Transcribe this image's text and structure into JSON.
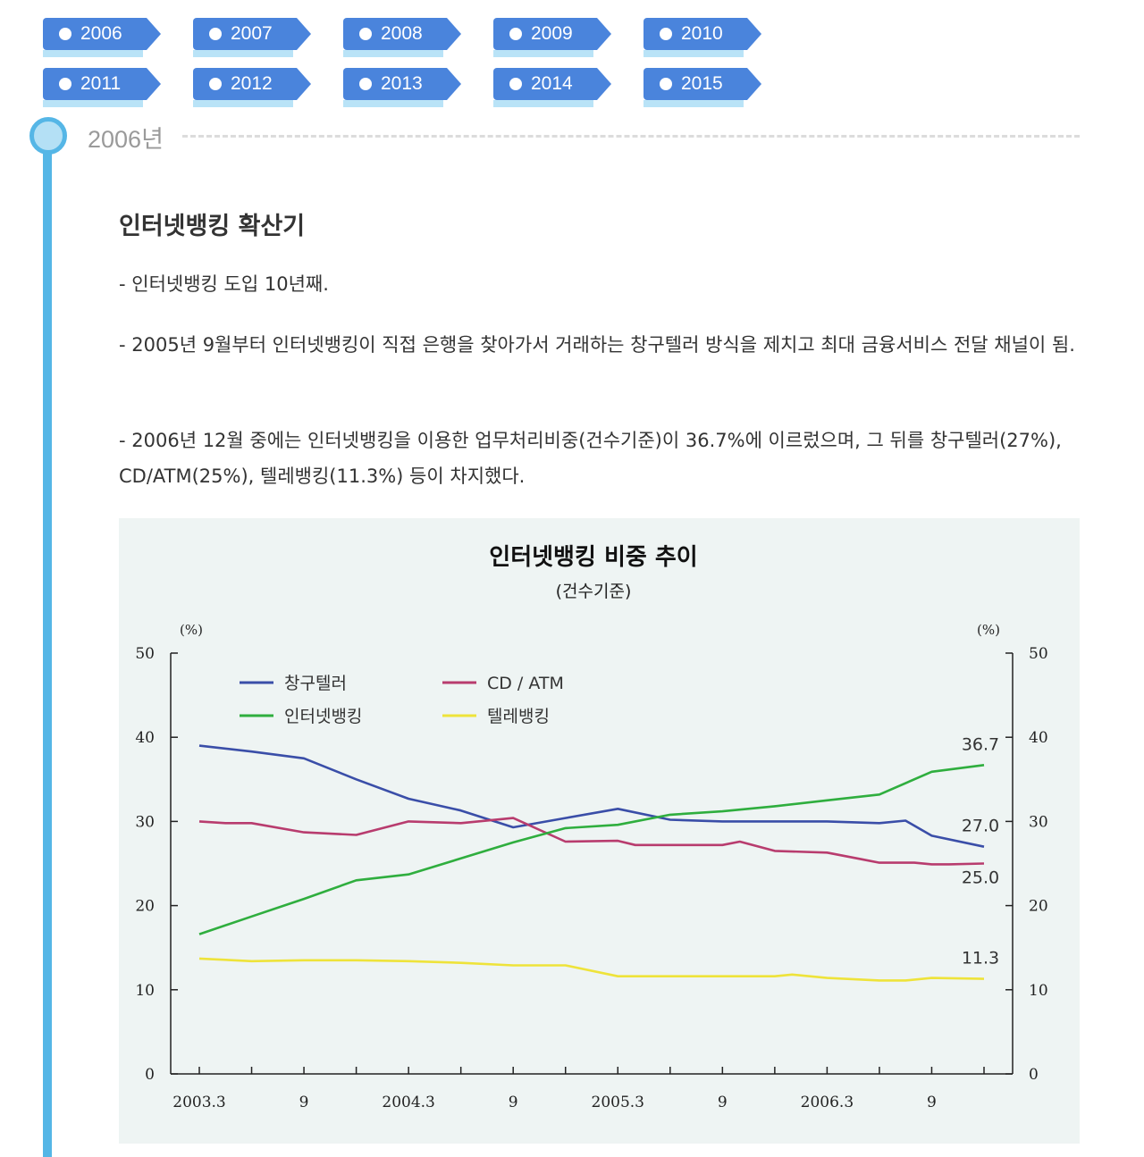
{
  "year_tags": {
    "row1": [
      "2006",
      "2007",
      "2008",
      "2009",
      "2010"
    ],
    "row2": [
      "2011",
      "2012",
      "2013",
      "2014",
      "2015"
    ]
  },
  "timeline": {
    "year_heading": "2006년",
    "section_title": "인터넷뱅킹 확산기",
    "paragraphs": [
      "-  인터넷뱅킹 도입 10년째.",
      "-  2005년 9월부터 인터넷뱅킹이 직접 은행을 찾아가서 거래하는 창구텔러 방식을 제치고 최대 금융서비스 전달 채널이 됨.",
      "-  2006년 12월 중에는 인터넷뱅킹을 이용한 업무처리비중(건수기준)이 36.7%에 이르렀으며, 그 뒤를 창구텔러(27%), CD/ATM(25%), 텔레뱅킹(11.3%) 등이 차지했다."
    ]
  },
  "colors": {
    "tag_blue": "#4a84dc",
    "timeline_blue": "#55b6e6",
    "panel_bg": "#eef4f3"
  },
  "chart_data": {
    "type": "line",
    "title": "인터넷뱅킹 비중 추이",
    "subtitle": "(건수기준)",
    "ylabel_left": "(%)",
    "ylabel_right": "(%)",
    "ylim": [
      0,
      50
    ],
    "yticks": [
      0,
      10,
      20,
      30,
      40,
      50
    ],
    "x_tick_labels": [
      "2003.3",
      "9",
      "2004.3",
      "9",
      "2005.3",
      "9",
      "2006.3",
      "9"
    ],
    "x_tick_positions": [
      0,
      6,
      12,
      18,
      24,
      30,
      36,
      42
    ],
    "x_range": [
      0,
      45
    ],
    "grid": false,
    "legend_position": "top-left",
    "series": [
      {
        "name": "창구텔러",
        "color": "#3a4ea8",
        "x": [
          0,
          3,
          6,
          9,
          12,
          15,
          18,
          21,
          24,
          27,
          30,
          33,
          36,
          39,
          40.5,
          42,
          45
        ],
        "y": [
          39.0,
          38.3,
          37.5,
          35.0,
          32.7,
          31.3,
          29.3,
          30.4,
          31.5,
          30.2,
          30.0,
          30.0,
          30.0,
          29.8,
          30.1,
          28.3,
          27.0
        ]
      },
      {
        "name": "CD / ATM",
        "color": "#b83c6e",
        "x": [
          0,
          1.5,
          3,
          6,
          9,
          12,
          15,
          18,
          21,
          24,
          25,
          27,
          30,
          31,
          33,
          36,
          38,
          39,
          41,
          42,
          43,
          45
        ],
        "y": [
          30.0,
          29.8,
          29.8,
          28.7,
          28.4,
          30.0,
          29.8,
          30.4,
          27.6,
          27.7,
          27.2,
          27.2,
          27.2,
          27.6,
          26.5,
          26.3,
          25.5,
          25.1,
          25.1,
          24.9,
          24.9,
          25.0
        ]
      },
      {
        "name": "인터넷뱅킹",
        "color": "#2fae3e",
        "x": [
          0,
          3,
          6,
          9,
          12,
          15,
          18,
          21,
          24,
          27,
          30,
          33,
          36,
          39,
          42,
          45
        ],
        "y": [
          16.6,
          18.7,
          20.8,
          23.0,
          23.7,
          25.6,
          27.5,
          29.2,
          29.6,
          30.8,
          31.2,
          31.8,
          32.5,
          33.2,
          35.9,
          36.7
        ]
      },
      {
        "name": "텔레뱅킹",
        "color": "#eee33a",
        "x": [
          0,
          3,
          6,
          9,
          12,
          15,
          18,
          21,
          24,
          27,
          30,
          33,
          34,
          36,
          39,
          40.5,
          42,
          45
        ],
        "y": [
          13.7,
          13.4,
          13.5,
          13.5,
          13.4,
          13.2,
          12.9,
          12.9,
          11.6,
          11.6,
          11.6,
          11.6,
          11.8,
          11.4,
          11.1,
          11.1,
          11.4,
          11.3
        ]
      }
    ],
    "end_labels": [
      "36.7",
      "27.0",
      "25.0",
      "11.3"
    ],
    "end_label_values": [
      36.7,
      27.0,
      25.0,
      11.3
    ]
  }
}
